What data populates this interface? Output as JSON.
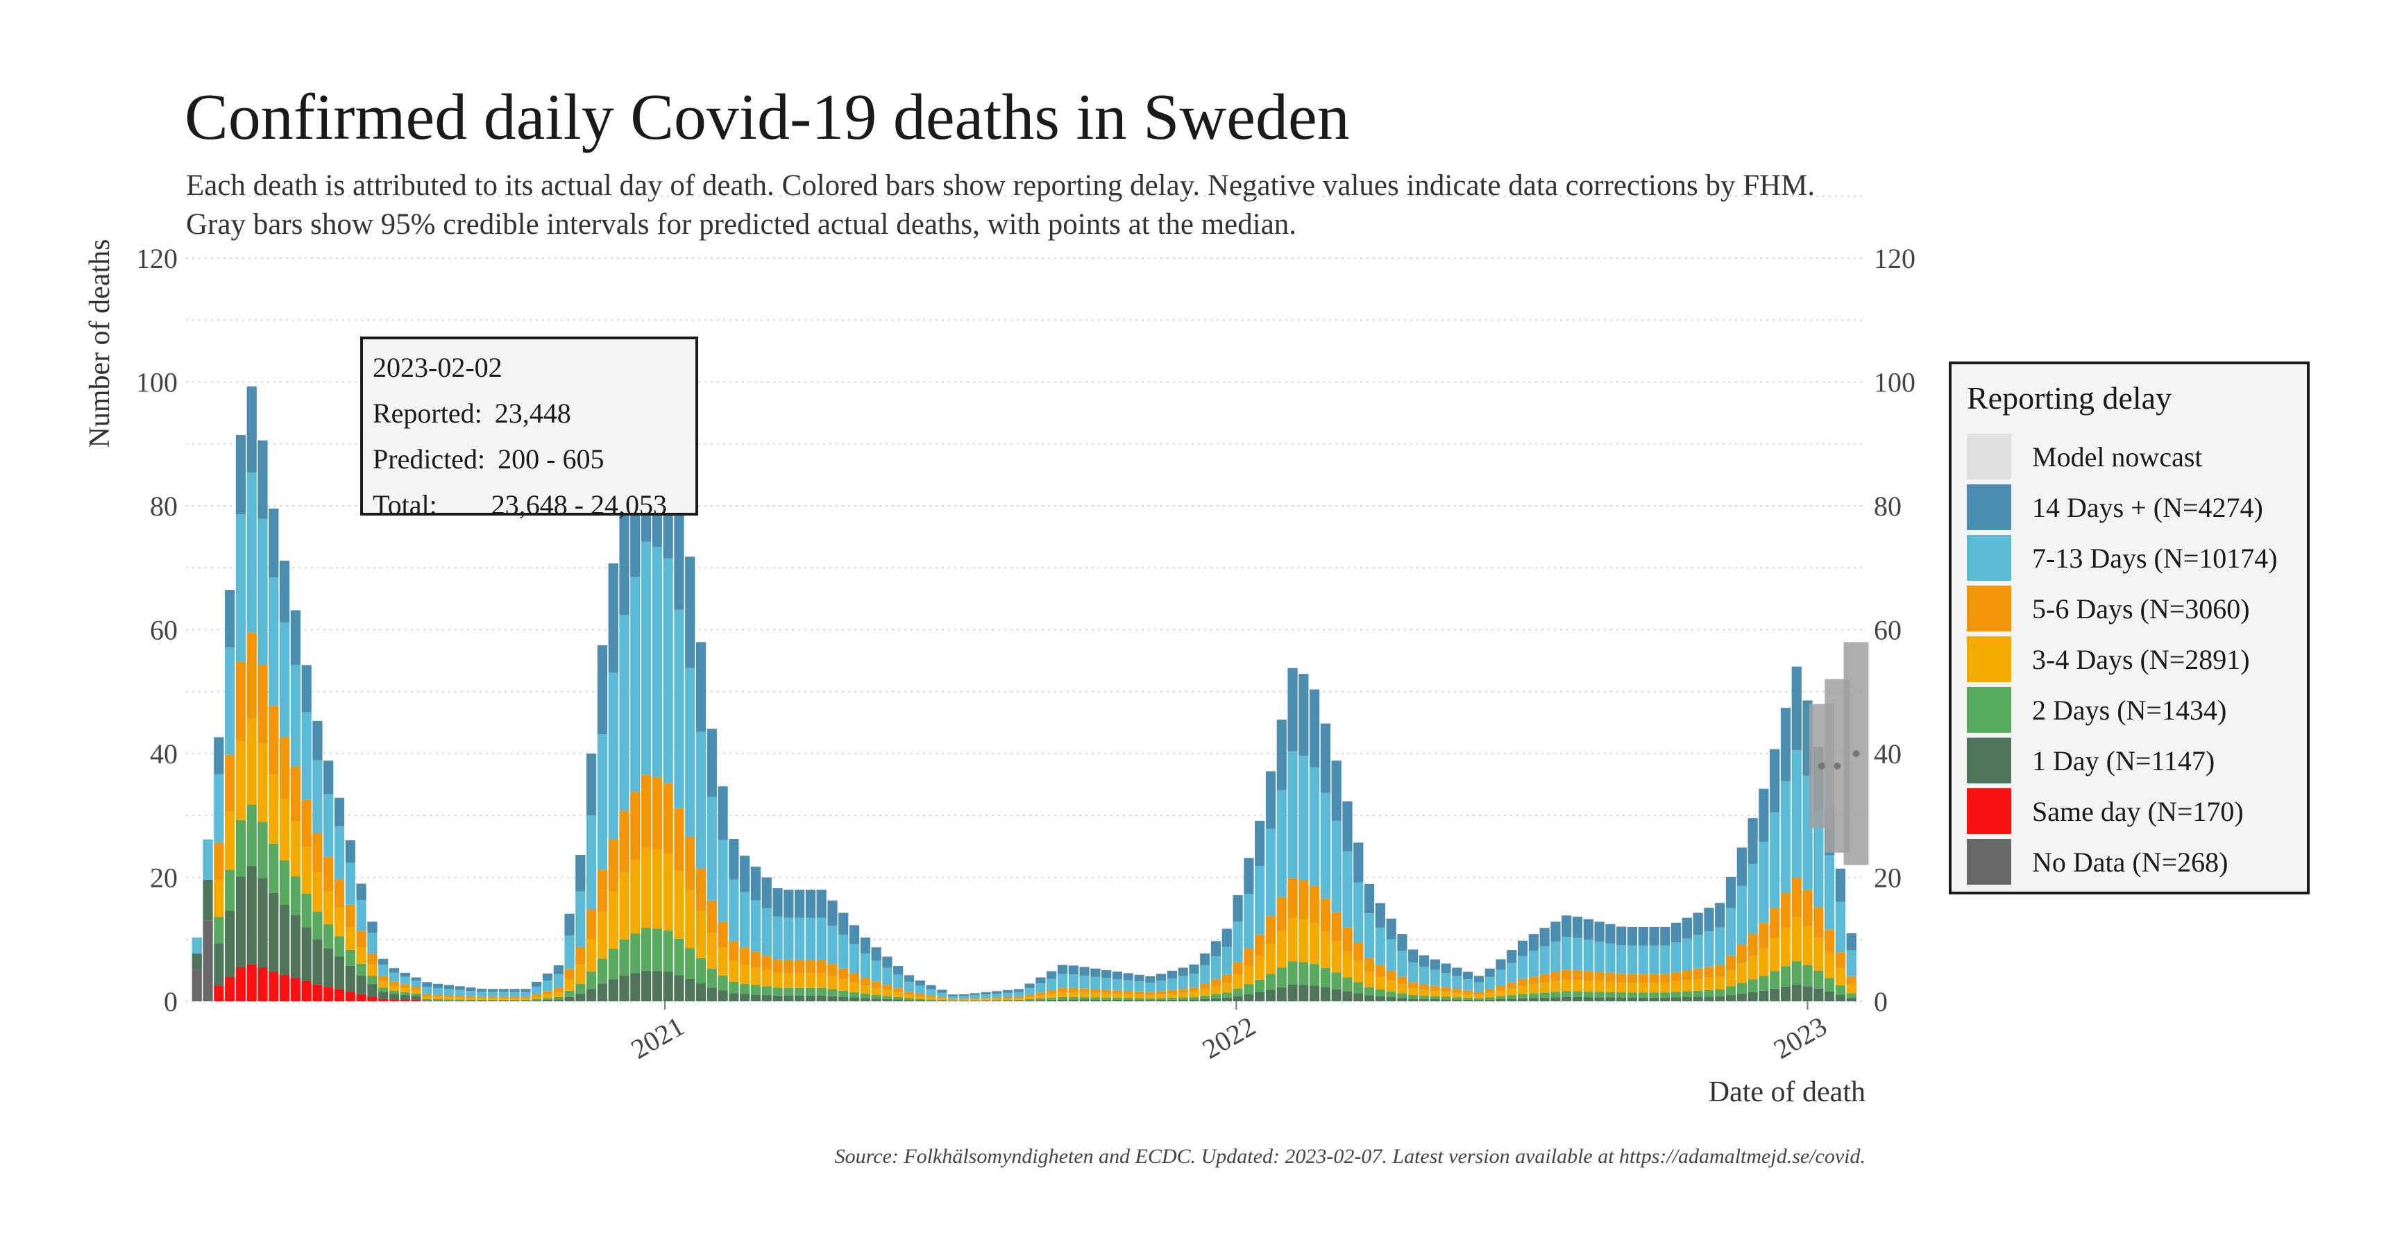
{
  "chart_data": {
    "type": "bar",
    "title": "Confirmed daily Covid-19 deaths in Sweden",
    "subtitle": [
      "Each death is attributed to its actual day of death. Colored bars show reporting delay. Negative values indicate data corrections by FHM.",
      "Gray bars show 95% credible intervals for predicted actual deaths, with points at the median."
    ],
    "xlabel": "Date of death",
    "ylabel": "Number of deaths",
    "x_range": [
      "2020-03-01",
      "2023-02-07"
    ],
    "ylim": [
      0,
      120
    ],
    "y_ticks": [
      0,
      20,
      40,
      60,
      80,
      100,
      120
    ],
    "x_ticks": [
      {
        "date": "2021-01-01",
        "label": "2021"
      },
      {
        "date": "2022-01-01",
        "label": "2022"
      },
      {
        "date": "2023-01-01",
        "label": "2023"
      }
    ],
    "grid": true,
    "legend_position": "right",
    "legend": {
      "title": "Reporting delay",
      "entries": [
        {
          "key": "nowcast",
          "label": "Model nowcast",
          "color": "#e0e0e0"
        },
        {
          "key": "d14",
          "label": "14 Days + (N=4274)",
          "color": "#4a8db1"
        },
        {
          "key": "d7",
          "label": "7-13 Days (N=10174)",
          "color": "#5bbad6"
        },
        {
          "key": "d5",
          "label": "5-6 Days (N=3060)",
          "color": "#f39509"
        },
        {
          "key": "d3",
          "label": "3-4 Days (N=2891)",
          "color": "#f5aa00"
        },
        {
          "key": "d2",
          "label": "2 Days (N=1434)",
          "color": "#58ab5e"
        },
        {
          "key": "d1",
          "label": "1 Day (N=1147)",
          "color": "#4e745a"
        },
        {
          "key": "d0",
          "label": "Same day (N=170)",
          "color": "#f81010"
        },
        {
          "key": "nodata",
          "label": "No Data (N=268)",
          "color": "#686868"
        }
      ]
    },
    "daily_total_by_week": [
      {
        "week_start": "2020-03-09",
        "deaths": 12
      },
      {
        "week_start": "2020-03-23",
        "deaths": 45
      },
      {
        "week_start": "2020-04-06",
        "deaths": 95
      },
      {
        "week_start": "2020-04-13",
        "deaths": 100
      },
      {
        "week_start": "2020-04-27",
        "deaths": 78
      },
      {
        "week_start": "2020-05-11",
        "deaths": 62
      },
      {
        "week_start": "2020-05-25",
        "deaths": 44
      },
      {
        "week_start": "2020-06-08",
        "deaths": 32
      },
      {
        "week_start": "2020-06-22",
        "deaths": 18
      },
      {
        "week_start": "2020-07-06",
        "deaths": 6
      },
      {
        "week_start": "2020-08-03",
        "deaths": 3
      },
      {
        "week_start": "2020-09-07",
        "deaths": 2
      },
      {
        "week_start": "2020-10-05",
        "deaths": 2
      },
      {
        "week_start": "2020-10-26",
        "deaths": 6
      },
      {
        "week_start": "2020-11-09",
        "deaths": 25
      },
      {
        "week_start": "2020-11-23",
        "deaths": 60
      },
      {
        "week_start": "2020-12-07",
        "deaths": 85
      },
      {
        "week_start": "2020-12-21",
        "deaths": 100
      },
      {
        "week_start": "2021-01-04",
        "deaths": 95
      },
      {
        "week_start": "2021-01-18",
        "deaths": 70
      },
      {
        "week_start": "2021-02-01",
        "deaths": 42
      },
      {
        "week_start": "2021-02-15",
        "deaths": 25
      },
      {
        "week_start": "2021-03-15",
        "deaths": 18
      },
      {
        "week_start": "2021-04-12",
        "deaths": 18
      },
      {
        "week_start": "2021-05-10",
        "deaths": 10
      },
      {
        "week_start": "2021-06-07",
        "deaths": 4
      },
      {
        "week_start": "2021-07-05",
        "deaths": 1
      },
      {
        "week_start": "2021-08-16",
        "deaths": 2
      },
      {
        "week_start": "2021-09-13",
        "deaths": 6
      },
      {
        "week_start": "2021-10-11",
        "deaths": 5
      },
      {
        "week_start": "2021-11-08",
        "deaths": 4
      },
      {
        "week_start": "2021-12-06",
        "deaths": 6
      },
      {
        "week_start": "2021-12-27",
        "deaths": 12
      },
      {
        "week_start": "2022-01-17",
        "deaths": 30
      },
      {
        "week_start": "2022-02-07",
        "deaths": 55
      },
      {
        "week_start": "2022-02-21",
        "deaths": 50
      },
      {
        "week_start": "2022-03-07",
        "deaths": 38
      },
      {
        "week_start": "2022-03-28",
        "deaths": 18
      },
      {
        "week_start": "2022-04-25",
        "deaths": 8
      },
      {
        "week_start": "2022-06-06",
        "deaths": 4
      },
      {
        "week_start": "2022-07-04",
        "deaths": 10
      },
      {
        "week_start": "2022-08-01",
        "deaths": 14
      },
      {
        "week_start": "2022-09-05",
        "deaths": 12
      },
      {
        "week_start": "2022-10-03",
        "deaths": 12
      },
      {
        "week_start": "2022-11-07",
        "deaths": 16
      },
      {
        "week_start": "2022-12-05",
        "deaths": 35
      },
      {
        "week_start": "2022-12-26",
        "deaths": 55
      },
      {
        "week_start": "2023-01-09",
        "deaths": 40
      },
      {
        "week_start": "2023-01-23",
        "deaths": 20
      },
      {
        "week_start": "2023-02-02",
        "deaths": 5
      }
    ],
    "nowcast_interval": [
      {
        "date": "2023-01-10",
        "low": 28,
        "high": 48
      },
      {
        "date": "2023-01-20",
        "low": 24,
        "high": 52
      },
      {
        "date": "2023-02-01",
        "low": 22,
        "high": 58
      }
    ],
    "annotation": {
      "date": "2023-02-02",
      "rows": [
        {
          "label": "Reported:",
          "value": "23,448"
        },
        {
          "label": "Predicted:",
          "value": "200 - 605"
        },
        {
          "label": "Total:",
          "value": "23,648 - 24,053"
        }
      ]
    },
    "source": "Source: Folkhälsomyndigheten and ECDC. Updated: 2023-02-07. Latest version available at https://adamaltmejd.se/covid."
  }
}
